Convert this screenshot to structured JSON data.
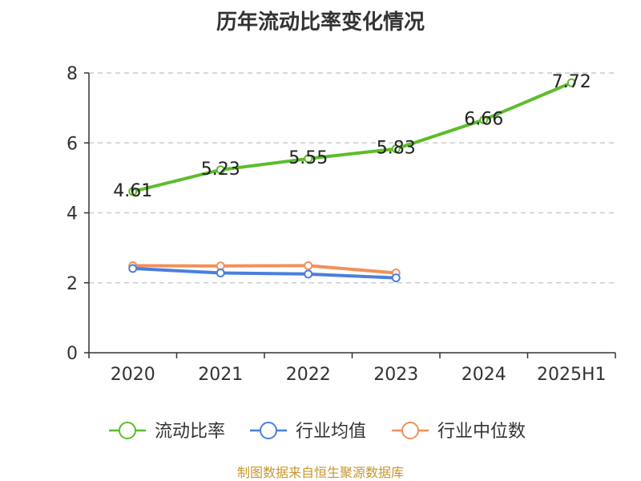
{
  "chart_data": {
    "type": "line",
    "title": "历年流动比率变化情况",
    "categories": [
      "2020",
      "2021",
      "2022",
      "2023",
      "2024",
      "2025H1"
    ],
    "ylim": [
      0,
      8
    ],
    "yticks": [
      0,
      2,
      4,
      6,
      8
    ],
    "grid": true,
    "legend_position": "bottom",
    "series": [
      {
        "name": "流动比率",
        "color": "#5cbd2b",
        "values": [
          4.61,
          5.23,
          5.55,
          5.83,
          6.66,
          7.72
        ],
        "labels": [
          "4.61",
          "5.23",
          "5.55",
          "5.83",
          "6.66",
          "7.72"
        ],
        "show_labels": true
      },
      {
        "name": "行业均值",
        "color": "#4a7fdc",
        "values": [
          2.41,
          2.28,
          2.25,
          2.14,
          null,
          null
        ],
        "show_labels": false
      },
      {
        "name": "行业中位数",
        "color": "#f2905a",
        "values": [
          2.49,
          2.48,
          2.49,
          2.28,
          null,
          null
        ],
        "show_labels": false
      }
    ],
    "source": "制图数据来自恒生聚源数据库"
  }
}
